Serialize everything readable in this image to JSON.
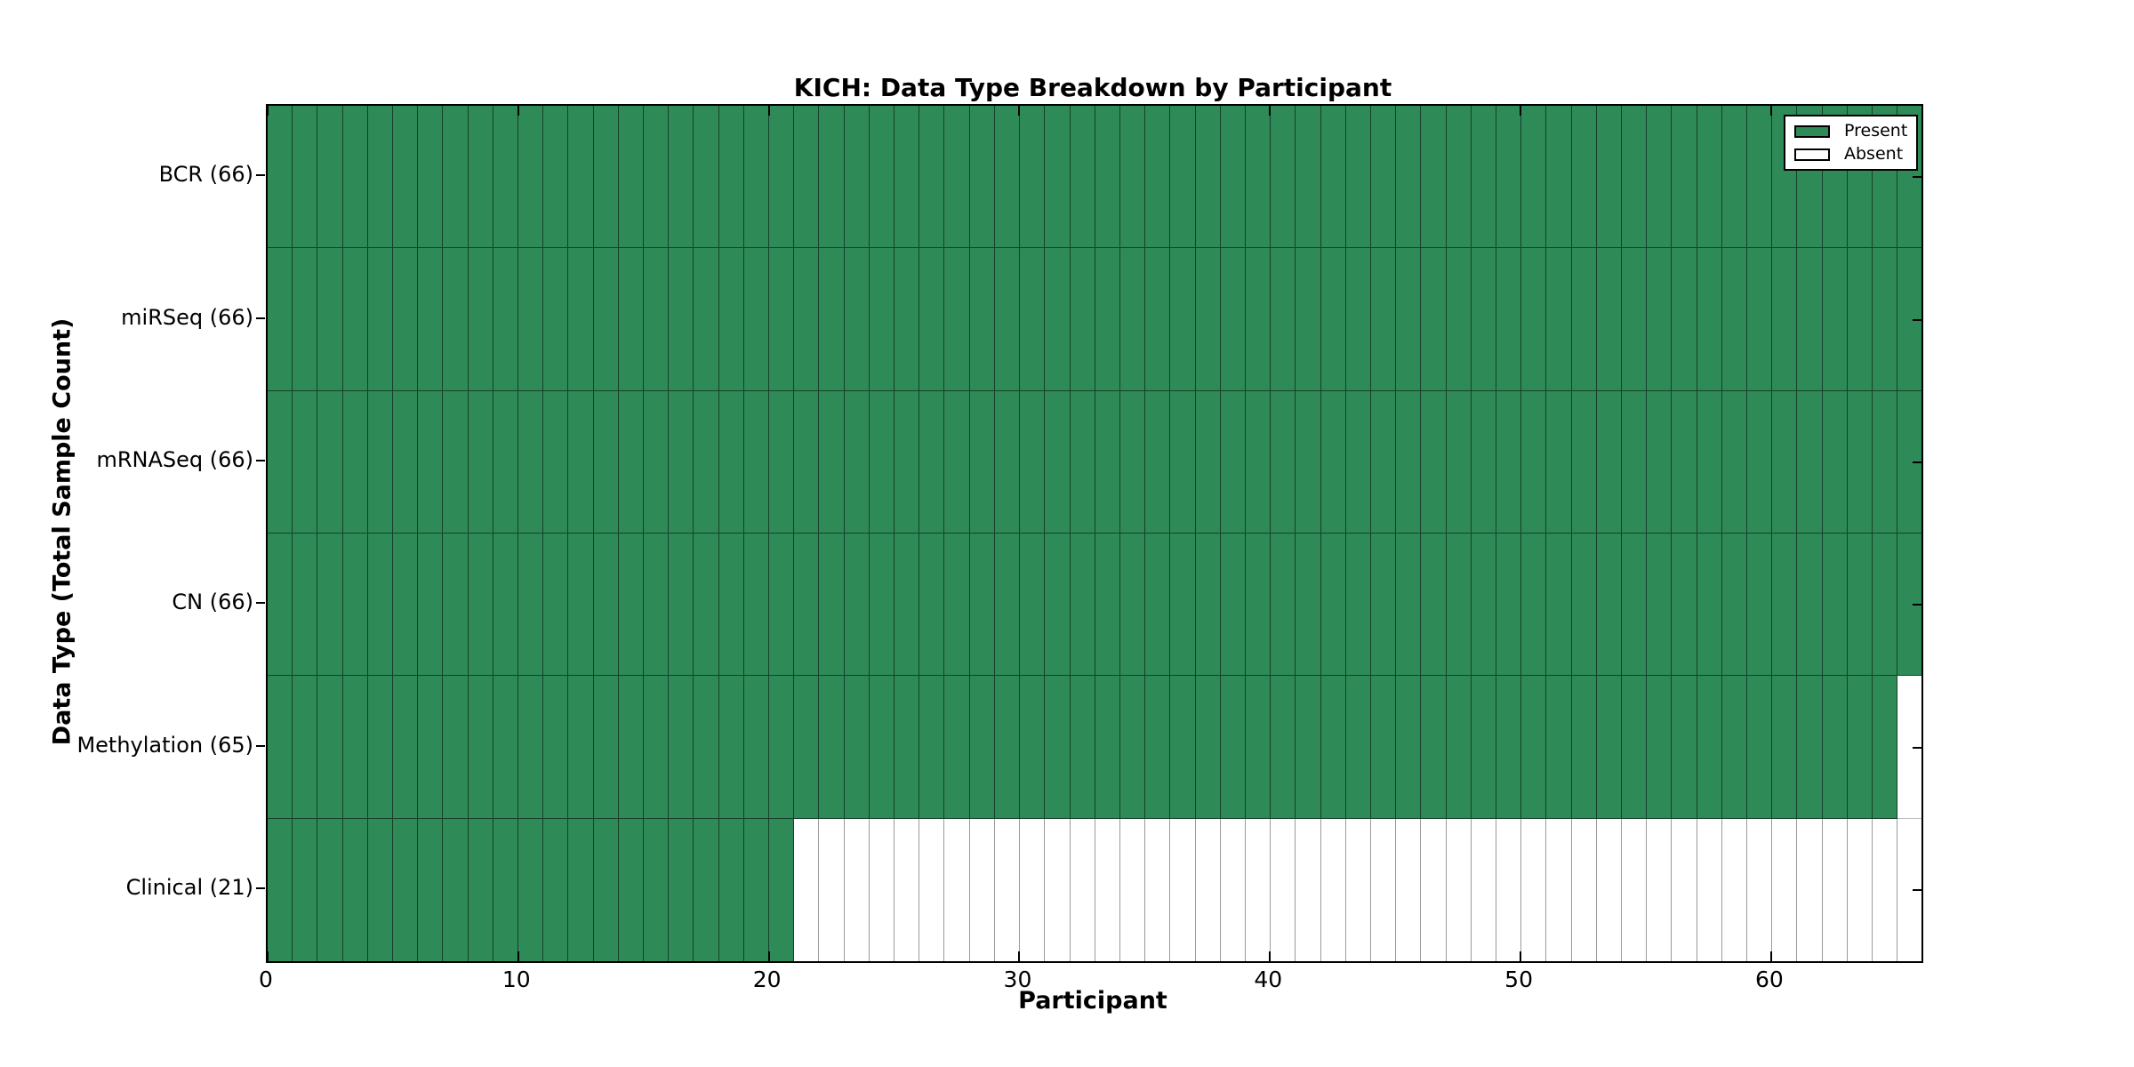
{
  "chart_data": {
    "type": "heatmap",
    "title": "KICH: Data Type Breakdown by Participant",
    "xlabel": "Participant",
    "ylabel": "Data Type (Total Sample Count)",
    "x_ticks": [
      0,
      10,
      20,
      30,
      40,
      50,
      60
    ],
    "x_range": [
      0,
      66
    ],
    "n_participants": 66,
    "rows": [
      {
        "label": "BCR (66)",
        "data_type": "BCR",
        "total_sample_count": 66,
        "present_count": 66
      },
      {
        "label": "miRSeq (66)",
        "data_type": "miRSeq",
        "total_sample_count": 66,
        "present_count": 66
      },
      {
        "label": "mRNASeq (66)",
        "data_type": "mRNASeq",
        "total_sample_count": 66,
        "present_count": 66
      },
      {
        "label": "CN (66)",
        "data_type": "CN",
        "total_sample_count": 66,
        "present_count": 66
      },
      {
        "label": "Methylation (65)",
        "data_type": "Methylation",
        "total_sample_count": 65,
        "present_count": 65
      },
      {
        "label": "Clinical (21)",
        "data_type": "Clinical",
        "total_sample_count": 21,
        "present_count": 21
      }
    ],
    "legend": [
      {
        "label": "Present",
        "color": "#2e8b57"
      },
      {
        "label": "Absent",
        "color": "#ffffff"
      }
    ],
    "colors": {
      "present": "#2e8b57",
      "absent": "#ffffff"
    },
    "legend_position": "upper right",
    "grid": "cell-borders"
  }
}
